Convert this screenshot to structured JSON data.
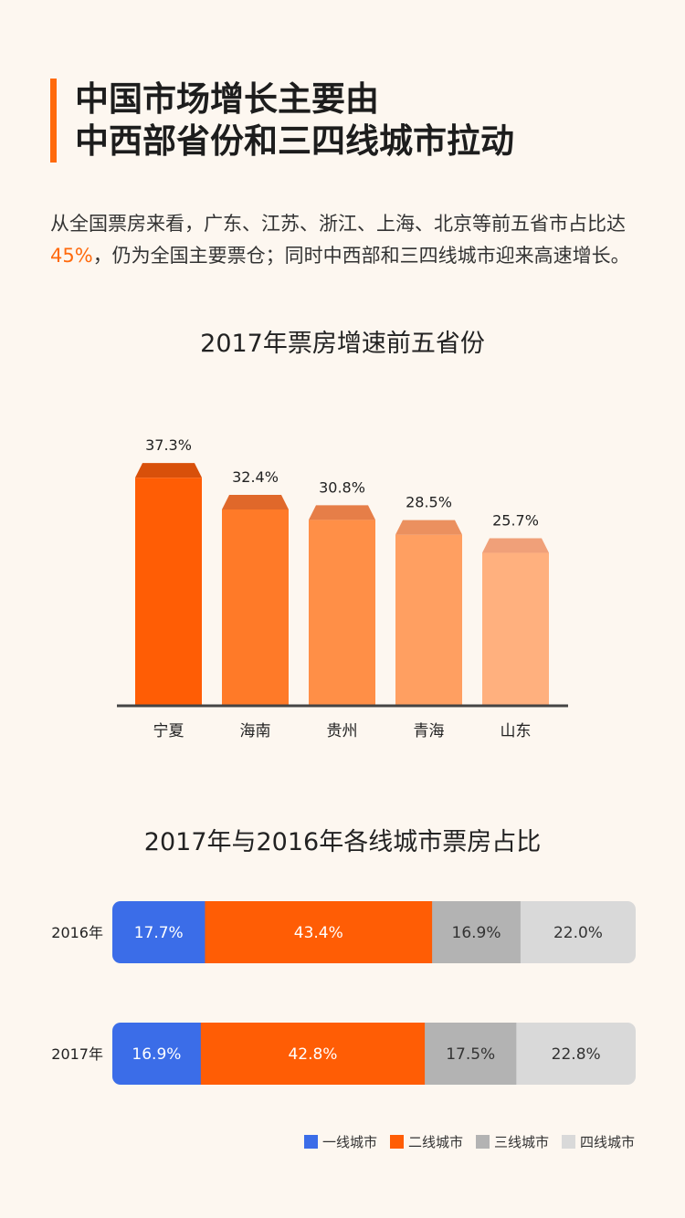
{
  "header": {
    "title_line1": "中国市场增长主要由",
    "title_line2": "中西部省份和三四线城市拉动"
  },
  "intro": {
    "part1": "从全国票房来看，广东、江苏、浙江、上海、北京等前五省市占比达",
    "highlight": "45%",
    "part2": "，仍为全国主要票仓；同时中西部和三四线城市迎来高速增长。"
  },
  "chart_data": [
    {
      "type": "bar",
      "title": "2017年票房增速前五省份",
      "categories": [
        "宁夏",
        "海南",
        "贵州",
        "青海",
        "山东"
      ],
      "values": [
        37.3,
        32.4,
        30.8,
        28.5,
        25.7
      ],
      "value_labels": [
        "37.3%",
        "32.4%",
        "30.8%",
        "28.5%",
        "25.7%"
      ],
      "colors": [
        "#ff5d05",
        "#ff7a28",
        "#ff8f47",
        "#ff9f61",
        "#ffb07e"
      ],
      "top_colors": [
        "#d8500a",
        "#e0682a",
        "#e67e48",
        "#eb905f",
        "#f0a079"
      ],
      "ylim": [
        0,
        40
      ],
      "grid": false
    },
    {
      "type": "bar",
      "title": "2017年与2016年各线城市票房占比",
      "orientation": "horizontal-stacked",
      "categories": [
        "2016年",
        "2017年"
      ],
      "series": [
        {
          "name": "一线城市",
          "values": [
            17.7,
            16.9
          ],
          "labels": [
            "17.7%",
            "16.9%"
          ],
          "color": "#3b6de8"
        },
        {
          "name": "二线城市",
          "values": [
            43.4,
            42.8
          ],
          "labels": [
            "43.4%",
            "42.8%"
          ],
          "color": "#ff5d05"
        },
        {
          "name": "三线城市",
          "values": [
            16.9,
            17.5
          ],
          "labels": [
            "16.9%",
            "17.5%"
          ],
          "color": "#b3b3b3"
        },
        {
          "name": "四线城市",
          "values": [
            22.0,
            22.8
          ],
          "labels": [
            "22.0%",
            "22.8%"
          ],
          "color": "#d9d9d9"
        }
      ],
      "xlim": [
        0,
        100
      ],
      "legend": "bottom-right"
    }
  ]
}
